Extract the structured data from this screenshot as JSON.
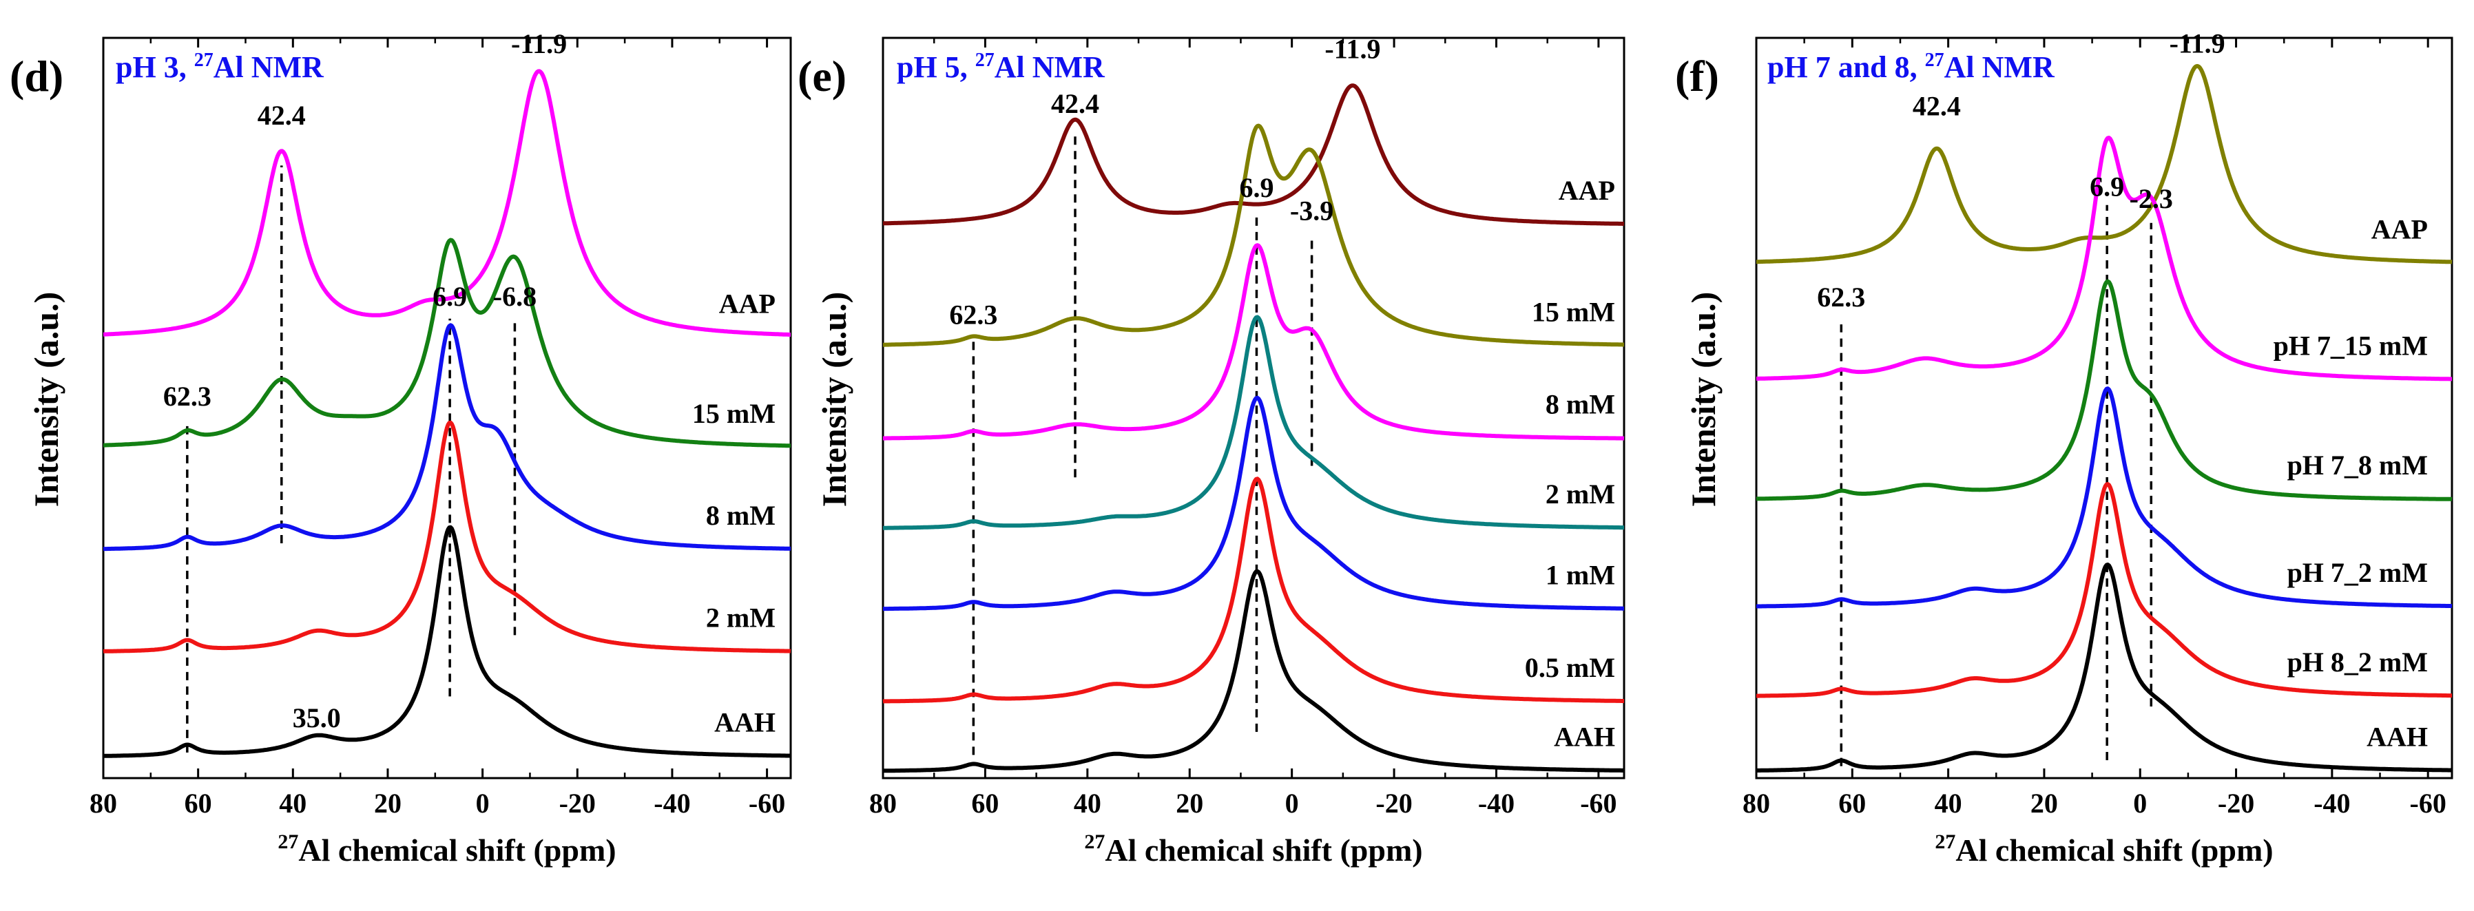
{
  "chart_data": [
    {
      "type": "line",
      "panel_label": "(d)",
      "title_text": "pH 3, ",
      "title_sup": "27",
      "title_tail": "Al NMR",
      "xlabel_sup": "27",
      "xlabel": "Al chemical shift (ppm)",
      "ylabel": "Intensity (a.u.)",
      "xlim": [
        80,
        -65
      ],
      "xticks": [
        80,
        60,
        40,
        20,
        0,
        -20,
        -40,
        -60
      ],
      "xtick_labels": [
        "80",
        "60",
        "40",
        "20",
        "0",
        "-20",
        "-40",
        "-60"
      ],
      "series": [
        {
          "name": "AAP",
          "color": "#FF00FF",
          "baseline": 0.86,
          "peaks": [
            [
              42.4,
              0.36,
              5
            ],
            [
              -11.9,
              0.52,
              6.5
            ],
            [
              12,
              0.03,
              6
            ]
          ]
        },
        {
          "name": "15 mM",
          "color": "#138013",
          "baseline": 0.645,
          "peaks": [
            [
              62.3,
              0.02,
              2.5
            ],
            [
              42.4,
              0.12,
              6
            ],
            [
              6.9,
              0.34,
              4.5
            ],
            [
              -6.8,
              0.34,
              6.5
            ],
            [
              28,
              0.02,
              8
            ]
          ]
        },
        {
          "name": "8 mM",
          "color": "#1010F0",
          "baseline": 0.445,
          "peaks": [
            [
              62.3,
              0.02,
              2.5
            ],
            [
              42.4,
              0.04,
              6
            ],
            [
              6.9,
              0.39,
              4.2
            ],
            [
              -3,
              0.16,
              6
            ],
            [
              -14,
              0.04,
              10
            ]
          ]
        },
        {
          "name": "2 mM",
          "color": "#F01515",
          "baseline": 0.245,
          "peaks": [
            [
              62.3,
              0.02,
              2.5
            ],
            [
              35,
              0.03,
              6
            ],
            [
              6.9,
              0.42,
              4.2
            ],
            [
              -6,
              0.08,
              10
            ]
          ]
        },
        {
          "name": "AAH",
          "color": "#000000",
          "baseline": 0.04,
          "peaks": [
            [
              62.3,
              0.02,
              2.5
            ],
            [
              35,
              0.03,
              6
            ],
            [
              6.9,
              0.42,
              4.2
            ],
            [
              -6,
              0.08,
              10
            ]
          ]
        }
      ],
      "series_labels": [
        {
          "text": "AAP",
          "series": 0
        },
        {
          "text": "15 mM",
          "series": 1
        },
        {
          "text": "8 mM",
          "series": 2
        },
        {
          "text": "2 mM",
          "series": 3
        },
        {
          "text": "AAH",
          "series": 4
        }
      ],
      "peak_labels": [
        {
          "text": "-11.9",
          "x": -11.9,
          "y": 1.42
        },
        {
          "text": "42.4",
          "x": 42.4,
          "y": 1.28
        },
        {
          "text": "6.9",
          "x": 6.9,
          "y": 0.925
        },
        {
          "text": "-6.8",
          "x": -6.8,
          "y": 0.925
        },
        {
          "text": "62.3",
          "x": 62.3,
          "y": 0.73
        },
        {
          "text": "35.0",
          "x": 35.0,
          "y": 0.1
        }
      ],
      "guide_lines": [
        {
          "x": 62.3,
          "y0": 0.05,
          "y1": 0.7
        },
        {
          "x": 42.4,
          "y0": 0.46,
          "y1": 1.2
        },
        {
          "x": 6.9,
          "y0": 0.16,
          "y1": 0.9
        },
        {
          "x": -6.8,
          "y0": 0.28,
          "y1": 0.9
        }
      ]
    },
    {
      "type": "line",
      "panel_label": "(e)",
      "title_text": "pH 5, ",
      "title_sup": "27",
      "title_tail": "Al NMR",
      "xlabel_sup": "27",
      "xlabel": "Al chemical shift (ppm)",
      "ylabel": "Intensity (a.u.)",
      "xlim": [
        80,
        -65
      ],
      "xticks": [
        80,
        60,
        40,
        20,
        0,
        -20,
        -40,
        -60
      ],
      "xtick_labels": [
        "80",
        "60",
        "40",
        "20",
        "0",
        "-20",
        "-40",
        "-60"
      ],
      "series": [
        {
          "name": "AAP",
          "color": "#7F0A0A",
          "baseline": 0.955,
          "peaks": [
            [
              42.4,
              0.18,
              5
            ],
            [
              -11.9,
              0.24,
              6
            ],
            [
              12,
              0.02,
              6
            ]
          ]
        },
        {
          "name": "15 mM",
          "color": "#808000",
          "baseline": 0.745,
          "peaks": [
            [
              62.3,
              0.01,
              2.5
            ],
            [
              42.4,
              0.04,
              7
            ],
            [
              6.9,
              0.3,
              4.2
            ],
            [
              -3.9,
              0.3,
              6.5
            ]
          ]
        },
        {
          "name": "8 mM",
          "color": "#FF00FF",
          "baseline": 0.585,
          "peaks": [
            [
              62.3,
              0.01,
              2.5
            ],
            [
              42.4,
              0.02,
              7
            ],
            [
              6.9,
              0.3,
              4.2
            ],
            [
              -3.9,
              0.15,
              6
            ]
          ]
        },
        {
          "name": "2 mM",
          "color": "#0A8080",
          "baseline": 0.43,
          "peaks": [
            [
              62.3,
              0.01,
              2.5
            ],
            [
              35,
              0.01,
              6
            ],
            [
              6.9,
              0.33,
              4.2
            ],
            [
              -4,
              0.08,
              10
            ]
          ]
        },
        {
          "name": "1 mM",
          "color": "#1010F0",
          "baseline": 0.29,
          "peaks": [
            [
              62.3,
              0.01,
              2.5
            ],
            [
              35,
              0.02,
              6
            ],
            [
              6.9,
              0.33,
              4.2
            ],
            [
              -4,
              0.08,
              10
            ]
          ]
        },
        {
          "name": "0.5 mM",
          "color": "#F01515",
          "baseline": 0.13,
          "peaks": [
            [
              62.3,
              0.01,
              2.5
            ],
            [
              35,
              0.02,
              6
            ],
            [
              6.9,
              0.35,
              4.2
            ],
            [
              -4,
              0.08,
              10
            ]
          ]
        },
        {
          "name": "AAH",
          "color": "#000000",
          "baseline": 0.01,
          "peaks": [
            [
              62.3,
              0.01,
              2.5
            ],
            [
              35,
              0.02,
              6
            ],
            [
              6.9,
              0.31,
              4.2
            ],
            [
              -4,
              0.08,
              10
            ]
          ]
        }
      ],
      "series_labels": [
        {
          "text": "AAP",
          "series": 0
        },
        {
          "text": "15 mM",
          "series": 1
        },
        {
          "text": "8 mM",
          "series": 2
        },
        {
          "text": "2 mM",
          "series": 3
        },
        {
          "text": "1 mM",
          "series": 4
        },
        {
          "text": "0.5 mM",
          "series": 5
        },
        {
          "text": "AAH",
          "series": 6
        }
      ],
      "peak_labels": [
        {
          "text": "-11.9",
          "x": -11.9,
          "y": 1.245
        },
        {
          "text": "42.4",
          "x": 42.4,
          "y": 1.15
        },
        {
          "text": "6.9",
          "x": 6.9,
          "y": 1.005
        },
        {
          "text": "-3.9",
          "x": -3.9,
          "y": 0.965
        },
        {
          "text": "62.3",
          "x": 62.3,
          "y": 0.785
        }
      ],
      "guide_lines": [
        {
          "x": 42.4,
          "y0": 0.52,
          "y1": 1.12
        },
        {
          "x": 62.3,
          "y0": 0.04,
          "y1": 0.76
        },
        {
          "x": 6.9,
          "y0": 0.08,
          "y1": 0.98
        },
        {
          "x": -3.9,
          "y0": 0.54,
          "y1": 0.94
        }
      ]
    },
    {
      "type": "line",
      "panel_label": "(f)",
      "title_text": "pH 7 and 8, ",
      "title_sup": "27",
      "title_tail": "Al NMR",
      "xlabel_sup": "27",
      "xlabel": "Al chemical shift (ppm)",
      "ylabel": "Intensity (a.u.)",
      "xlim": [
        80,
        -65
      ],
      "xticks": [
        80,
        60,
        40,
        20,
        0,
        -20,
        -40,
        -60
      ],
      "xtick_labels": [
        "80",
        "60",
        "40",
        "20",
        "0",
        "-20",
        "-40",
        "-60"
      ],
      "series": [
        {
          "name": "AAP",
          "color": "#808000",
          "baseline": 0.86,
          "peaks": [
            [
              42.4,
              0.19,
              5
            ],
            [
              -11.9,
              0.33,
              6
            ],
            [
              12,
              0.02,
              6
            ]
          ]
        },
        {
          "name": "pH 7_15 mM",
          "color": "#FF00FF",
          "baseline": 0.665,
          "peaks": [
            [
              62.3,
              0.01,
              2.5
            ],
            [
              45,
              0.03,
              8
            ],
            [
              6.9,
              0.33,
              4.2
            ],
            [
              -2.3,
              0.25,
              6
            ]
          ]
        },
        {
          "name": "pH 7_8 mM",
          "color": "#138013",
          "baseline": 0.465,
          "peaks": [
            [
              62.3,
              0.01,
              2.5
            ],
            [
              45,
              0.02,
              8
            ],
            [
              6.9,
              0.33,
              4.2
            ],
            [
              -2.3,
              0.12,
              6
            ]
          ]
        },
        {
          "name": "pH 7_2 mM",
          "color": "#1010F0",
          "baseline": 0.285,
          "peaks": [
            [
              62.3,
              0.01,
              2.5
            ],
            [
              35,
              0.02,
              6
            ],
            [
              6.9,
              0.33,
              4.2
            ],
            [
              -4,
              0.08,
              10
            ]
          ]
        },
        {
          "name": "pH 8_2 mM",
          "color": "#F01515",
          "baseline": 0.135,
          "peaks": [
            [
              62.3,
              0.01,
              2.5
            ],
            [
              35,
              0.02,
              6
            ],
            [
              6.9,
              0.32,
              4.2
            ],
            [
              -4,
              0.08,
              10
            ]
          ]
        },
        {
          "name": "AAH",
          "color": "#000000",
          "baseline": 0.01,
          "peaks": [
            [
              62.3,
              0.015,
              2.5
            ],
            [
              35,
              0.02,
              6
            ],
            [
              6.9,
              0.31,
              4.2
            ],
            [
              -4,
              0.08,
              10
            ]
          ]
        }
      ],
      "series_labels": [
        {
          "text": "AAP",
          "series": 0
        },
        {
          "text": "pH 7_15 mM",
          "series": 1
        },
        {
          "text": "pH 7_8 mM",
          "series": 2
        },
        {
          "text": "pH 7_2 mM",
          "series": 3
        },
        {
          "text": "pH 8_2 mM",
          "series": 4
        },
        {
          "text": "AAH",
          "series": 5
        }
      ],
      "peak_labels": [
        {
          "text": "-11.9",
          "x": -11.9,
          "y": 1.215
        },
        {
          "text": "42.4",
          "x": 42.4,
          "y": 1.11
        },
        {
          "text": "6.9",
          "x": 6.9,
          "y": 0.975
        },
        {
          "text": "-2.3",
          "x": -2.3,
          "y": 0.955
        },
        {
          "text": "62.3",
          "x": 62.3,
          "y": 0.79
        }
      ],
      "guide_lines": [
        {
          "x": 62.3,
          "y0": 0.02,
          "y1": 0.76
        },
        {
          "x": 6.9,
          "y0": 0.03,
          "y1": 0.96
        },
        {
          "x": -2.3,
          "y0": 0.12,
          "y1": 0.93
        }
      ]
    }
  ]
}
